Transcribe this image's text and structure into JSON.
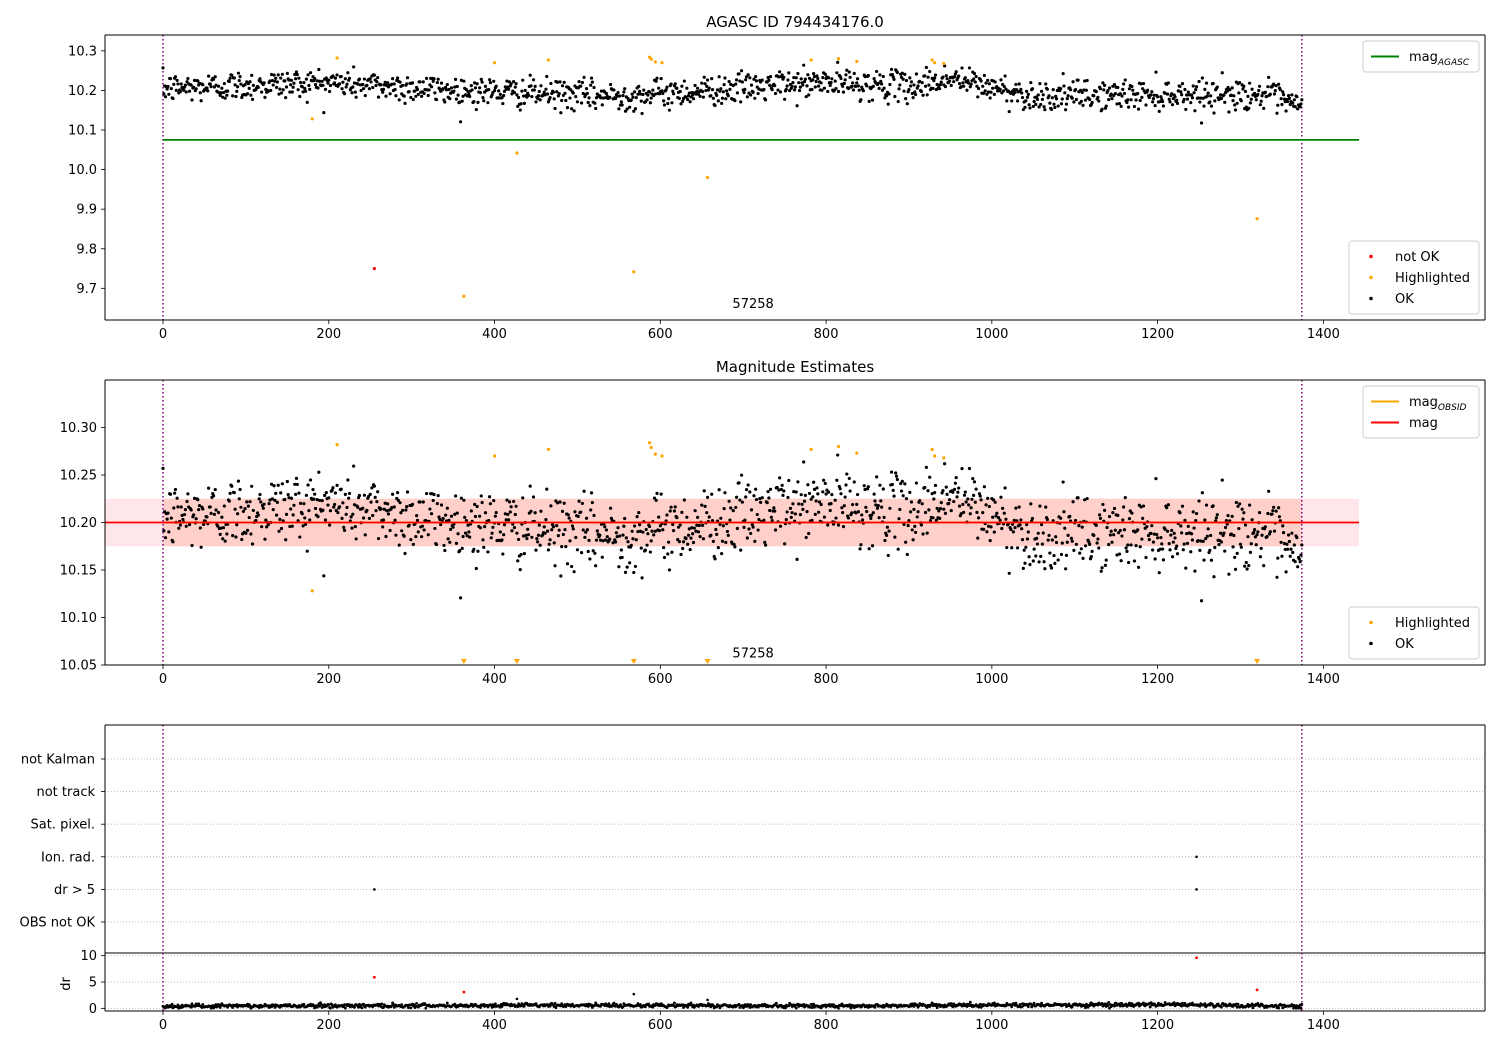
{
  "figure": {
    "colors": {
      "ok": "#000000",
      "highlighted": "#ffa500",
      "not_ok": "#ff0000",
      "mag_agasc": "#008000",
      "mag_obsid": "#ffa500",
      "mag": "#ff0000",
      "band_obsid": "#ffa07a",
      "band_mag": "#ffc0cb",
      "obs_boundary": "#800080",
      "grid": "#b0b0b0"
    }
  },
  "chart_data": [
    {
      "type": "scatter",
      "title": "AGASC ID 794434176.0",
      "xlim": [
        -70,
        1595
      ],
      "ylim": [
        9.62,
        10.34
      ],
      "x_ticks": [
        0,
        200,
        400,
        600,
        800,
        1000,
        1200,
        1400
      ],
      "y_ticks": [
        9.7,
        9.8,
        9.9,
        10.0,
        10.1,
        10.2,
        10.3
      ],
      "y_tick_decimals": 1,
      "obs_boundaries": [
        0,
        1374
      ],
      "obs_label": {
        "text": "57258",
        "x": 687,
        "y": 9.65
      },
      "hlines": [
        {
          "name": "mag_AGASC",
          "y": 10.075,
          "x0": 0,
          "x1": 1443,
          "color_key": "mag_agasc"
        }
      ],
      "ok_series": {
        "name": "OK",
        "n": 1375,
        "mean": 10.2,
        "scatter": 0.025,
        "drift": [
          [
            0,
            10.205
          ],
          [
            200,
            10.22
          ],
          [
            350,
            10.2
          ],
          [
            550,
            10.185
          ],
          [
            800,
            10.22
          ],
          [
            900,
            10.21
          ],
          [
            950,
            10.23
          ],
          [
            1050,
            10.185
          ],
          [
            1200,
            10.19
          ],
          [
            1330,
            10.19
          ],
          [
            1374,
            10.155
          ]
        ]
      },
      "highlighted_points": {
        "name": "Highlighted",
        "points": [
          [
            180,
            10.128
          ],
          [
            210,
            10.282
          ],
          [
            363,
            9.68
          ],
          [
            400,
            10.27
          ],
          [
            427,
            10.042
          ],
          [
            465,
            10.277
          ],
          [
            568,
            9.742
          ],
          [
            587,
            10.284
          ],
          [
            589,
            10.279
          ],
          [
            594,
            10.272
          ],
          [
            602,
            10.27
          ],
          [
            657,
            9.98
          ],
          [
            782,
            10.277
          ],
          [
            815,
            10.28
          ],
          [
            837,
            10.273
          ],
          [
            928,
            10.277
          ],
          [
            931,
            10.27
          ],
          [
            942,
            10.268
          ],
          [
            1320,
            9.876
          ]
        ]
      },
      "not_ok_points": {
        "name": "not OK",
        "points": [
          [
            255,
            9.75
          ]
        ]
      },
      "legends": [
        {
          "position": "upper-right",
          "entries": [
            {
              "label": "mag",
              "sub": "AGASC",
              "kind": "line",
              "color_key": "mag_agasc"
            }
          ]
        },
        {
          "position": "lower-right",
          "entries": [
            {
              "label": "not OK",
              "kind": "dot",
              "color_key": "not_ok"
            },
            {
              "label": "Highlighted",
              "kind": "dot",
              "color_key": "highlighted"
            },
            {
              "label": "OK",
              "kind": "dot",
              "color_key": "ok"
            }
          ]
        }
      ]
    },
    {
      "type": "scatter",
      "title": "Magnitude Estimates",
      "xlim": [
        -70,
        1595
      ],
      "ylim": [
        10.05,
        10.35
      ],
      "x_ticks": [
        0,
        200,
        400,
        600,
        800,
        1000,
        1200,
        1400
      ],
      "y_ticks": [
        10.05,
        10.1,
        10.15,
        10.2,
        10.25,
        10.3
      ],
      "y_tick_decimals": 2,
      "obs_boundaries": [
        0,
        1374
      ],
      "obs_label": {
        "text": "57258",
        "x": 687,
        "y": 10.058
      },
      "bands": [
        {
          "name": "mag_OBSID band",
          "y0": 10.175,
          "y1": 10.225,
          "x0": 0,
          "x1": 1374,
          "color_key": "band_obsid"
        },
        {
          "name": "mag band",
          "y0": 10.175,
          "y1": 10.225,
          "x0": -70,
          "x1": 1443,
          "color_key": "band_mag"
        }
      ],
      "hlines": [
        {
          "name": "mag_OBSID",
          "y": 10.2,
          "x0": 0,
          "x1": 1374,
          "color_key": "mag_obsid"
        },
        {
          "name": "mag",
          "y": 10.2,
          "x0": -70,
          "x1": 1443,
          "color_key": "mag"
        }
      ],
      "ok_series": {
        "name": "OK",
        "n": 1375,
        "mean": 10.2,
        "scatter": 0.025,
        "drift": [
          [
            0,
            10.205
          ],
          [
            200,
            10.22
          ],
          [
            350,
            10.2
          ],
          [
            550,
            10.185
          ],
          [
            800,
            10.22
          ],
          [
            900,
            10.21
          ],
          [
            950,
            10.23
          ],
          [
            1050,
            10.185
          ],
          [
            1200,
            10.19
          ],
          [
            1330,
            10.19
          ],
          [
            1374,
            10.155
          ]
        ]
      },
      "highlighted_points": {
        "name": "Highlighted",
        "points": [
          [
            180,
            10.128
          ],
          [
            210,
            10.282
          ],
          [
            400,
            10.27
          ],
          [
            465,
            10.277
          ],
          [
            587,
            10.284
          ],
          [
            589,
            10.279
          ],
          [
            594,
            10.272
          ],
          [
            602,
            10.27
          ],
          [
            782,
            10.277
          ],
          [
            815,
            10.28
          ],
          [
            837,
            10.273
          ],
          [
            928,
            10.277
          ],
          [
            931,
            10.27
          ],
          [
            942,
            10.268
          ]
        ]
      },
      "below_range_markers": {
        "name": "Highlighted",
        "x": [
          363,
          427,
          568,
          657,
          1320
        ],
        "color_key": "highlighted"
      },
      "legends": [
        {
          "position": "upper-right",
          "entries": [
            {
              "label": "mag",
              "sub": "OBSID",
              "kind": "line",
              "color_key": "mag_obsid"
            },
            {
              "label": "mag",
              "kind": "line",
              "color_key": "mag"
            }
          ]
        },
        {
          "position": "lower-right",
          "entries": [
            {
              "label": "Highlighted",
              "kind": "dot",
              "color_key": "highlighted"
            },
            {
              "label": "OK",
              "kind": "dot",
              "color_key": "ok"
            }
          ]
        }
      ]
    },
    {
      "type": "scatter",
      "title": "",
      "xlim": [
        -70,
        1595
      ],
      "categories": [
        "not Kalman",
        "not track",
        "Sat. pixel.",
        "Ion. rad.",
        "dr > 5",
        "OBS not OK"
      ],
      "obs_boundaries": [
        0,
        1374
      ],
      "flag_points": [
        {
          "category": "Ion. rad.",
          "x": 1247
        },
        {
          "category": "dr > 5",
          "x": 255
        },
        {
          "category": "dr > 5",
          "x": 1247
        }
      ]
    },
    {
      "type": "scatter",
      "title": "",
      "xlim": [
        -70,
        1595
      ],
      "ylim": [
        -0.5,
        10.5
      ],
      "ylabel": "dr",
      "x_ticks": [
        0,
        200,
        400,
        600,
        800,
        1000,
        1200,
        1400
      ],
      "y_ticks": [
        0,
        5,
        10
      ],
      "obs_boundaries": [
        0,
        1374
      ],
      "ok_series": {
        "name": "OK",
        "n": 1375,
        "mean": 0.5,
        "scatter": 0.25,
        "drift": [
          [
            0,
            0.4
          ],
          [
            200,
            0.5
          ],
          [
            500,
            0.6
          ],
          [
            800,
            0.45
          ],
          [
            1000,
            0.6
          ],
          [
            1200,
            0.7
          ],
          [
            1374,
            0.4
          ]
        ]
      },
      "extra_points": [
        [
          427,
          1.8
        ],
        [
          568,
          2.7
        ],
        [
          657,
          1.6
        ]
      ],
      "not_ok_points": {
        "name": "not OK",
        "points": [
          [
            255,
            5.9
          ],
          [
            363,
            3.1
          ],
          [
            1247,
            9.6
          ],
          [
            1320,
            3.5
          ]
        ]
      }
    }
  ]
}
